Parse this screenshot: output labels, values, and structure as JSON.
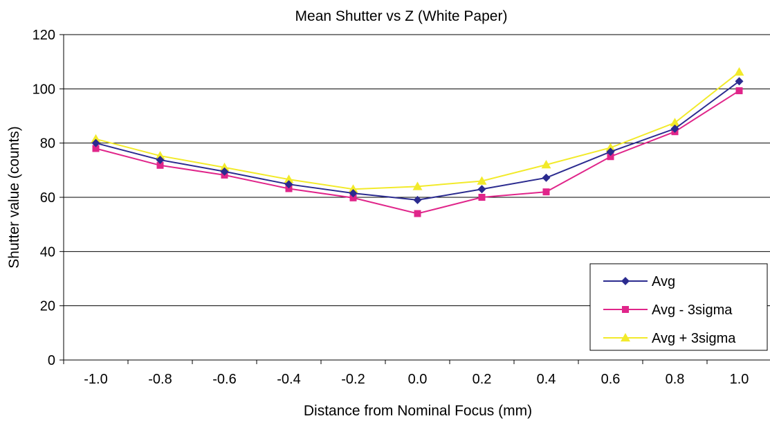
{
  "chart_data": {
    "type": "line",
    "title": "Mean Shutter vs Z (White Paper)",
    "xlabel": "Distance from Nominal Focus (mm)",
    "ylabel": "Shutter value (counts)",
    "categories": [
      "-1.0",
      "-0.8",
      "-0.6",
      "-0.4",
      "-0.2",
      "0.0",
      "0.2",
      "0.4",
      "0.6",
      "0.8",
      "1.0"
    ],
    "ylim": [
      0,
      120
    ],
    "yticks": [
      0,
      20,
      40,
      60,
      80,
      100,
      120
    ],
    "grid": "horizontal",
    "legend_position": "bottom-right",
    "series": [
      {
        "name": "Avg",
        "color": "#2b2b8f",
        "marker": "diamond",
        "values": [
          80,
          73.8,
          69.5,
          64.8,
          61.5,
          59,
          63,
          67.2,
          76.8,
          85.3,
          102.8
        ]
      },
      {
        "name": "Avg - 3sigma",
        "color": "#e0258a",
        "marker": "square",
        "values": [
          78,
          71.8,
          68.2,
          63.2,
          59.8,
          54,
          60,
          62,
          75,
          84.2,
          99.3
        ]
      },
      {
        "name": "Avg + 3sigma",
        "color": "#f2ea2a",
        "marker": "triangle",
        "values": [
          81.5,
          75.3,
          71,
          66.6,
          63,
          64,
          66,
          72,
          78.3,
          87.5,
          106.2
        ]
      }
    ]
  }
}
